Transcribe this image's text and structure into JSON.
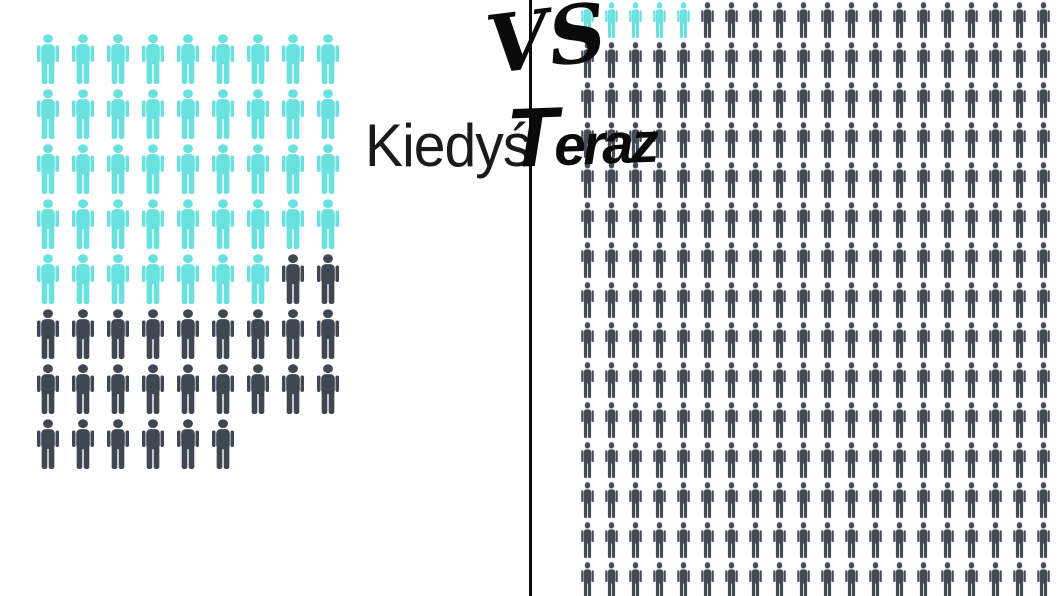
{
  "labels": {
    "left": "Kiedyś",
    "vs": "VS",
    "right_initial": "T",
    "right_rest": "eraz",
    "right_full": "Teraz"
  },
  "colors": {
    "highlight_cyan": "#68E1DF",
    "base_dark": "#3F4753",
    "divider": "#0e0e0e",
    "background": "#ffffff",
    "text": "#0b0b0b"
  },
  "chart_data": {
    "type": "pictogram",
    "title": "Kiedyś vs Teraz",
    "legend_position": "none",
    "panels": [
      {
        "label": "Kiedyś",
        "columns": 9,
        "rows": 8,
        "row_layout": [
          9,
          9,
          9,
          9,
          9,
          9,
          9,
          6
        ],
        "total_icons": 69,
        "highlighted_icons": 43,
        "base_icons": 26,
        "highlight_color": "#68E1DF",
        "base_color": "#3F4753",
        "icon": "person",
        "icon_size": "large"
      },
      {
        "label": "Teraz",
        "columns": 20,
        "rows": 15,
        "row_layout": [
          20,
          20,
          20,
          20,
          20,
          20,
          20,
          20,
          20,
          20,
          20,
          20,
          20,
          20,
          20
        ],
        "total_icons": 300,
        "highlighted_icons": 5,
        "base_icons": 295,
        "highlight_color": "#68E1DF",
        "base_color": "#454C58",
        "icon": "person",
        "icon_size": "small"
      }
    ]
  }
}
